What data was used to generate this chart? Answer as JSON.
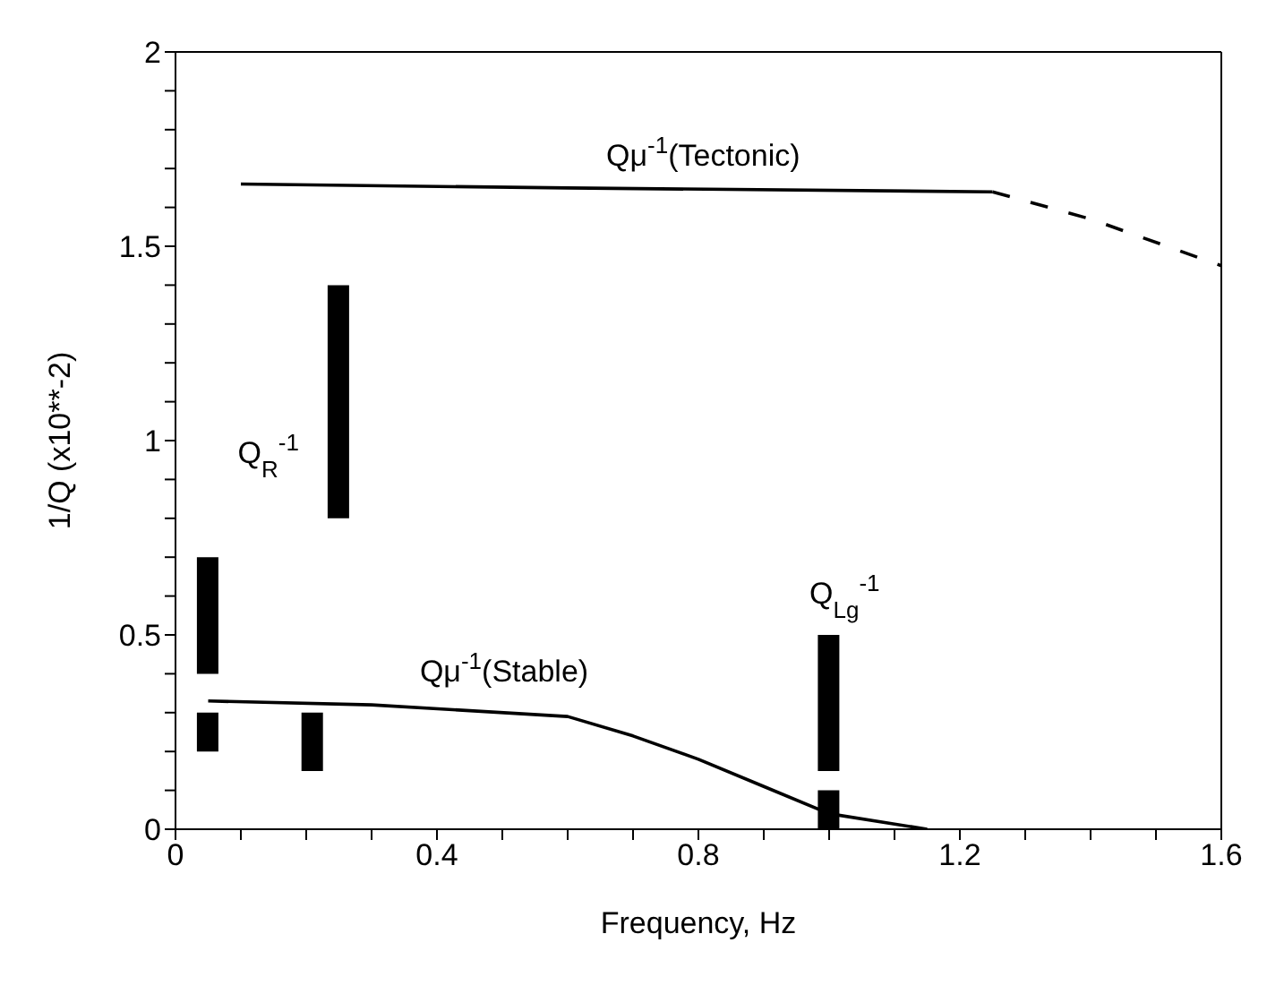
{
  "chart_data": {
    "type": "line",
    "xlabel": "Frequency, Hz",
    "ylabel": "1/Q (x10**-2)",
    "xlim": [
      0,
      1.6
    ],
    "ylim": [
      0,
      2
    ],
    "xticks": [
      0,
      {
        "value": 0.1,
        "label": null
      },
      {
        "value": 0.2,
        "label": null
      },
      {
        "value": 0.3,
        "label": null
      },
      0.4,
      {
        "value": 0.5,
        "label": null
      },
      {
        "value": 0.6,
        "label": null
      },
      {
        "value": 0.7,
        "label": null
      },
      0.8,
      {
        "value": 0.9,
        "label": null
      },
      {
        "value": 1.0,
        "label": null
      },
      {
        "value": 1.1,
        "label": null
      },
      1.2,
      {
        "value": 1.3,
        "label": null
      },
      {
        "value": 1.4,
        "label": null
      },
      {
        "value": 1.5,
        "label": null
      },
      1.6
    ],
    "yticks": [
      0,
      {
        "value": 0.1,
        "label": null
      },
      {
        "value": 0.2,
        "label": null
      },
      {
        "value": 0.3,
        "label": null
      },
      {
        "value": 0.4,
        "label": null
      },
      0.5,
      {
        "value": 0.6,
        "label": null
      },
      {
        "value": 0.7,
        "label": null
      },
      {
        "value": 0.8,
        "label": null
      },
      {
        "value": 0.9,
        "label": null
      },
      1,
      {
        "value": 1.1,
        "label": null
      },
      {
        "value": 1.2,
        "label": null
      },
      {
        "value": 1.3,
        "label": null
      },
      {
        "value": 1.4,
        "label": null
      },
      1.5,
      {
        "value": 1.6,
        "label": null
      },
      {
        "value": 1.7,
        "label": null
      },
      {
        "value": 1.8,
        "label": null
      },
      {
        "value": 1.9,
        "label": null
      },
      2
    ],
    "series": [
      {
        "type": "bar",
        "color": "#000000",
        "x": [
          0.05,
          0.21,
          1.0
        ],
        "base": [
          0.2,
          0.15,
          0.0
        ],
        "values": [
          0.1,
          0.15,
          0.1
        ]
      },
      {
        "type": "bar",
        "color": "#000000",
        "x": [
          0.05,
          0.25,
          1.0
        ],
        "base": [
          0.4,
          0.8,
          0.15
        ],
        "values": [
          0.3,
          0.6,
          0.35
        ]
      },
      {
        "color": "#000000",
        "line_style": "solid",
        "x": [
          0.1,
          0.6,
          1.25
        ],
        "values": [
          1.66,
          1.65,
          1.64
        ]
      },
      {
        "color": "#000000",
        "line_style": "dashed",
        "x": [
          1.25,
          1.4,
          1.6
        ],
        "values": [
          1.64,
          1.57,
          1.45
        ]
      },
      {
        "color": "#000000",
        "line_style": "solid",
        "x": [
          0.05,
          0.3,
          0.6,
          0.7,
          0.8,
          0.9,
          1.0,
          1.15
        ],
        "values": [
          0.33,
          0.32,
          0.29,
          0.24,
          0.18,
          0.11,
          0.04,
          0
        ]
      }
    ],
    "annotations": [
      "Qμ$^{-1}$(Tectonic)",
      "Q$_{R}$$^{-1}$",
      "Qμ$^{-1}$(Stable)",
      "Q$_{Lg}$$^{-1}$"
    ]
  }
}
